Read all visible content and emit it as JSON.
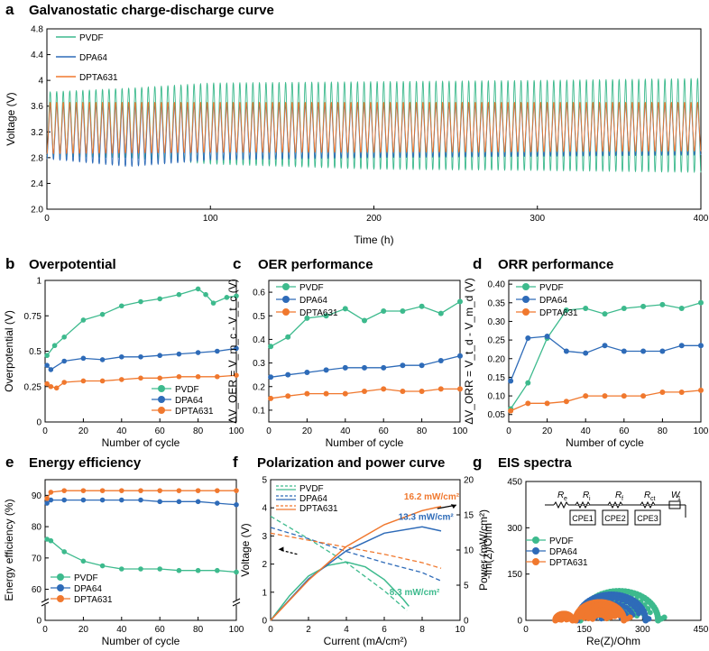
{
  "colors": {
    "pvdf": "#3dba8d",
    "dpa64": "#2e6bb8",
    "dpta631": "#f0782e"
  },
  "chart_data": [
    {
      "id": "a",
      "letter": "a",
      "type": "line",
      "title": "Galvanostatic charge-discharge curve",
      "xlabel": "Time (h)",
      "ylabel": "Voltage (V)",
      "xlim": [
        0,
        400
      ],
      "ylim": [
        2.0,
        4.8
      ],
      "xticks": [
        0,
        100,
        200,
        300,
        400
      ],
      "yticks": [
        2.0,
        2.4,
        2.8,
        3.2,
        3.6,
        4.0,
        4.4,
        4.8
      ],
      "ytick_labels": [
        "2.0",
        "2.4",
        "2.8",
        "3.2",
        "3.6",
        "4",
        "4.4",
        "4.8"
      ],
      "legend": [
        "PVDF",
        "DPA64",
        "DPTA631"
      ],
      "cycle_period_h": 4,
      "series": [
        {
          "name": "PVDF",
          "key": "pvdf",
          "t": [
            0,
            50,
            100,
            200,
            300,
            400
          ],
          "upper": [
            3.82,
            3.88,
            3.96,
            3.98,
            4.0,
            4.03
          ],
          "lower": [
            2.82,
            2.8,
            2.7,
            2.62,
            2.6,
            2.57
          ]
        },
        {
          "name": "DPA64",
          "key": "dpa64",
          "t": [
            0,
            50,
            100,
            200,
            300,
            400
          ],
          "upper": [
            3.62,
            3.62,
            3.62,
            3.62,
            3.63,
            3.64
          ],
          "lower": [
            2.78,
            2.66,
            2.76,
            2.8,
            2.82,
            2.84
          ]
        },
        {
          "name": "DPTA631",
          "key": "dpta631",
          "t": [
            0,
            100,
            200,
            300,
            400
          ],
          "upper": [
            3.66,
            3.66,
            3.66,
            3.66,
            3.66
          ],
          "lower": [
            2.86,
            2.88,
            2.88,
            2.89,
            2.9
          ]
        }
      ]
    },
    {
      "id": "b",
      "letter": "b",
      "type": "scatter",
      "title": "Overpotential",
      "xlabel": "Number of cycle",
      "ylabel": "Overpotential (V)",
      "xlim": [
        0,
        100
      ],
      "ylim": [
        0,
        1.0
      ],
      "xticks": [
        0,
        20,
        40,
        60,
        80,
        100
      ],
      "yticks": [
        0,
        0.25,
        0.5,
        0.75,
        1.0
      ],
      "ytick_labels": [
        "0",
        "0.25",
        "0.5",
        "0.75",
        "1"
      ],
      "legend": [
        "PVDF",
        "DPA64",
        "DPTA631"
      ],
      "series": [
        {
          "name": "PVDF",
          "key": "pvdf",
          "x": [
            1,
            5,
            10,
            20,
            30,
            40,
            50,
            60,
            70,
            80,
            84,
            88,
            95,
            100
          ],
          "values": [
            0.47,
            0.54,
            0.6,
            0.72,
            0.76,
            0.82,
            0.85,
            0.87,
            0.9,
            0.94,
            0.9,
            0.84,
            0.88,
            0.89
          ]
        },
        {
          "name": "DPA64",
          "key": "dpa64",
          "x": [
            1,
            3,
            10,
            20,
            30,
            40,
            50,
            60,
            70,
            80,
            90,
            100
          ],
          "values": [
            0.4,
            0.37,
            0.43,
            0.45,
            0.44,
            0.46,
            0.46,
            0.47,
            0.48,
            0.49,
            0.5,
            0.52
          ]
        },
        {
          "name": "DPTA631",
          "key": "dpta631",
          "x": [
            1,
            3,
            6,
            10,
            20,
            30,
            40,
            50,
            60,
            70,
            80,
            90,
            100
          ],
          "values": [
            0.27,
            0.25,
            0.24,
            0.28,
            0.29,
            0.29,
            0.3,
            0.31,
            0.31,
            0.32,
            0.32,
            0.32,
            0.33
          ]
        }
      ]
    },
    {
      "id": "c",
      "letter": "c",
      "type": "line",
      "title": "OER performance",
      "xlabel": "Number of cycle",
      "ylabel": "ΔV_OER = V_m_c - V_t_c (V)",
      "xlim": [
        0,
        100
      ],
      "ylim": [
        0.05,
        0.65
      ],
      "xticks": [
        0,
        20,
        40,
        60,
        80,
        100
      ],
      "yticks": [
        0.1,
        0.2,
        0.3,
        0.4,
        0.5,
        0.6
      ],
      "ytick_labels": [
        "0.1",
        "0.2",
        "0.3",
        "0.4",
        "0.5",
        "0.6"
      ],
      "legend": [
        "PVDF",
        "DPA64",
        "DPTA631"
      ],
      "series": [
        {
          "name": "PVDF",
          "key": "pvdf",
          "x": [
            1,
            10,
            20,
            30,
            40,
            50,
            60,
            70,
            80,
            90,
            100
          ],
          "values": [
            0.37,
            0.41,
            0.49,
            0.5,
            0.53,
            0.48,
            0.52,
            0.52,
            0.54,
            0.51,
            0.56
          ]
        },
        {
          "name": "DPA64",
          "key": "dpa64",
          "x": [
            1,
            10,
            20,
            30,
            40,
            50,
            60,
            70,
            80,
            90,
            100
          ],
          "values": [
            0.24,
            0.25,
            0.26,
            0.27,
            0.28,
            0.28,
            0.28,
            0.29,
            0.29,
            0.31,
            0.33
          ]
        },
        {
          "name": "DPTA631",
          "key": "dpta631",
          "x": [
            1,
            10,
            20,
            30,
            40,
            50,
            60,
            70,
            80,
            90,
            100
          ],
          "values": [
            0.15,
            0.16,
            0.17,
            0.17,
            0.17,
            0.18,
            0.19,
            0.18,
            0.18,
            0.19,
            0.19
          ]
        }
      ]
    },
    {
      "id": "d",
      "letter": "d",
      "type": "line",
      "title": "ORR performance",
      "xlabel": "Number of cycle",
      "ylabel": "ΔV_ORR = V_t_d - V_m_d (V)",
      "xlim": [
        0,
        100
      ],
      "ylim": [
        0.03,
        0.41
      ],
      "xticks": [
        0,
        20,
        40,
        60,
        80,
        100
      ],
      "yticks": [
        0.05,
        0.1,
        0.15,
        0.2,
        0.25,
        0.3,
        0.35,
        0.4
      ],
      "ytick_labels": [
        "0.05",
        "0.10",
        "0.15",
        "0.20",
        "0.25",
        "0.30",
        "0.35",
        "0.40"
      ],
      "legend": [
        "PVDF",
        "DPA64",
        "DPTA631"
      ],
      "series": [
        {
          "name": "PVDF",
          "key": "pvdf",
          "x": [
            1,
            10,
            20,
            30,
            40,
            50,
            60,
            70,
            80,
            90,
            100
          ],
          "values": [
            0.065,
            0.135,
            0.255,
            0.33,
            0.335,
            0.32,
            0.335,
            0.34,
            0.345,
            0.335,
            0.35
          ]
        },
        {
          "name": "DPA64",
          "key": "dpa64",
          "x": [
            1,
            10,
            20,
            30,
            40,
            50,
            60,
            70,
            80,
            90,
            100
          ],
          "values": [
            0.14,
            0.255,
            0.26,
            0.22,
            0.215,
            0.235,
            0.22,
            0.22,
            0.22,
            0.235,
            0.235
          ]
        },
        {
          "name": "DPTA631",
          "key": "dpta631",
          "x": [
            1,
            10,
            20,
            30,
            40,
            50,
            60,
            70,
            80,
            90,
            100
          ],
          "values": [
            0.06,
            0.08,
            0.08,
            0.085,
            0.1,
            0.1,
            0.1,
            0.1,
            0.11,
            0.11,
            0.115
          ]
        }
      ]
    },
    {
      "id": "e",
      "letter": "e",
      "type": "scatter",
      "title": "Energy efficiency",
      "xlabel": "Number of cycle",
      "ylabel": "Energy efficiency (%)",
      "xlim": [
        0,
        100
      ],
      "ylim": [
        0,
        95
      ],
      "axis_break": [
        5,
        57
      ],
      "xticks": [
        0,
        20,
        40,
        60,
        80,
        100
      ],
      "yticks": [
        0,
        60,
        70,
        80,
        90
      ],
      "ytick_labels": [
        "0",
        "60",
        "70",
        "80",
        "90"
      ],
      "legend": [
        "PVDF",
        "DPA64",
        "DPTA631"
      ],
      "series": [
        {
          "name": "PVDF",
          "key": "pvdf",
          "x": [
            1,
            3,
            10,
            20,
            30,
            40,
            50,
            60,
            70,
            80,
            90,
            100
          ],
          "values": [
            76,
            75.5,
            72,
            69,
            67.5,
            66.5,
            66.5,
            66.5,
            66,
            66,
            66,
            65.5
          ]
        },
        {
          "name": "DPA64",
          "key": "dpa64",
          "x": [
            1,
            3,
            10,
            20,
            30,
            40,
            50,
            60,
            70,
            80,
            90,
            100
          ],
          "values": [
            87.5,
            88.5,
            88.5,
            88.5,
            88.5,
            88.5,
            88.5,
            88,
            88,
            88,
            87.5,
            87
          ]
        },
        {
          "name": "DPTA631",
          "key": "dpta631",
          "x": [
            1,
            3,
            10,
            20,
            30,
            40,
            50,
            60,
            70,
            80,
            90,
            100
          ],
          "values": [
            89,
            91,
            91.5,
            91.5,
            91.5,
            91.5,
            91.5,
            91.5,
            91.5,
            91.5,
            91.5,
            91.5
          ]
        }
      ]
    },
    {
      "id": "f",
      "letter": "f",
      "type": "line",
      "title": "Polarization and power curve",
      "xlabel": "Current (mA/cm²)",
      "ylabel": "Voltage (V)",
      "ylabel_right": "Power (mW/cm²)",
      "xlim": [
        0,
        10
      ],
      "ylim": [
        0,
        5
      ],
      "ylim_right": [
        0,
        20
      ],
      "xticks": [
        0,
        2,
        4,
        6,
        8,
        10
      ],
      "yticks": [
        0,
        1,
        2,
        3,
        4,
        5
      ],
      "yticks_right": [
        0,
        5,
        10,
        15,
        20
      ],
      "legend": [
        "PVDF",
        "DPA64",
        "DPTA631"
      ],
      "annotations": [
        "16.2 mW/cm²",
        "13.3 mW/cm²",
        "8.3 mW/cm²"
      ],
      "series": [
        {
          "name": "PVDF",
          "key": "pvdf",
          "x": [
            0,
            2,
            4,
            6,
            7.2
          ],
          "voltage": [
            3.7,
            2.9,
            2.05,
            1.05,
            0.35
          ],
          "power_x": [
            0,
            1,
            2,
            3,
            4,
            5,
            6,
            7,
            7.3
          ],
          "power": [
            0,
            3.5,
            6.3,
            7.8,
            8.3,
            7.6,
            5.8,
            3.0,
            2.0
          ]
        },
        {
          "name": "DPA64",
          "key": "dpa64",
          "x": [
            0,
            2,
            4,
            6,
            8,
            9
          ],
          "voltage": [
            3.3,
            2.9,
            2.45,
            2.05,
            1.7,
            1.4
          ],
          "power_x": [
            0,
            2,
            4,
            6,
            8,
            9
          ],
          "power": [
            0,
            5.9,
            9.9,
            12.4,
            13.3,
            12.7
          ]
        },
        {
          "name": "DPTA631",
          "key": "dpta631",
          "x": [
            0,
            2,
            4,
            6,
            8,
            9
          ],
          "voltage": [
            3.1,
            2.85,
            2.6,
            2.35,
            2.05,
            1.85
          ],
          "power_x": [
            0,
            2,
            4,
            6,
            8,
            9
          ],
          "power": [
            0,
            5.7,
            10.5,
            13.6,
            15.6,
            16.2
          ]
        }
      ]
    },
    {
      "id": "g",
      "letter": "g",
      "type": "scatter",
      "title": "EIS spectra",
      "xlabel": "Re(Z)/Ohm",
      "ylabel": "-Im(Z)/Ohm",
      "xlim": [
        0,
        450
      ],
      "ylim": [
        0,
        450
      ],
      "xticks": [
        0,
        150,
        300,
        450
      ],
      "yticks": [
        0,
        150,
        300,
        450
      ],
      "legend": [
        "PVDF",
        "DPA64",
        "DPTA631"
      ],
      "circuit_labels": [
        "R",
        "e",
        "R",
        "i",
        "R",
        "f",
        "R",
        "ct",
        "W",
        "1",
        "CPE1",
        "CPE2",
        "CPE3"
      ],
      "series": [
        {
          "name": "PVDF",
          "key": "pvdf",
          "x_start": 75,
          "arcs": [
            {
              "center": 240,
              "radius": 100
            }
          ],
          "tail_to": 360
        },
        {
          "name": "DPA64",
          "key": "dpa64",
          "x_start": 75,
          "arcs": [
            {
              "center": 220,
              "radius": 88
            }
          ],
          "tail_to": 320
        },
        {
          "name": "DPTA631",
          "key": "dpta631",
          "x_start": 75,
          "arcs": [
            {
              "center": 98,
              "radius": 22
            },
            {
              "center": 190,
              "radius": 62
            }
          ],
          "tail_to": 275
        }
      ]
    }
  ]
}
